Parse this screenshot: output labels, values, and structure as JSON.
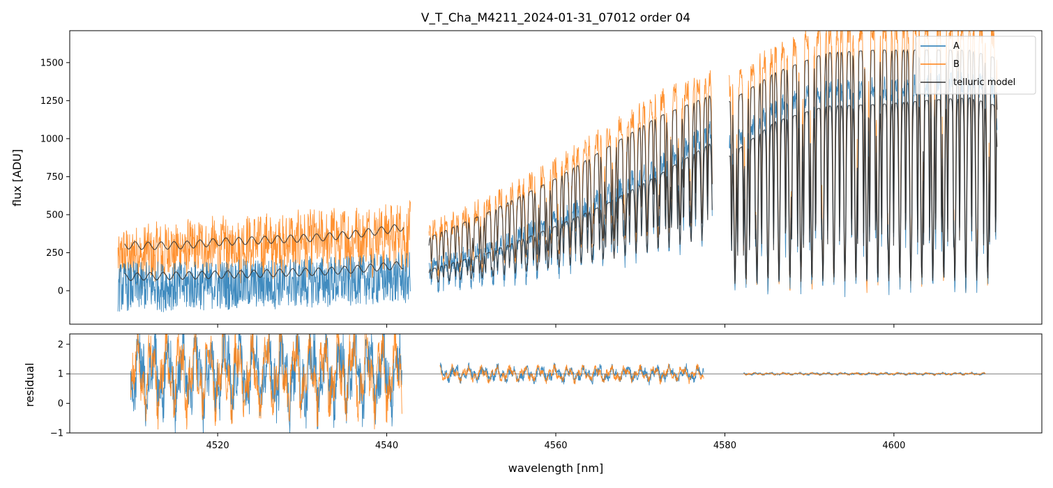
{
  "chart_data": [
    {
      "type": "line",
      "panel": "top",
      "title": "V_T_Cha_M4211_2024-01-31_07012  order 04",
      "xlabel": "",
      "ylabel": "flux [ADU]",
      "xlim": [
        4502.5,
        4617.5
      ],
      "ylim": [
        -220,
        1710
      ],
      "xticks": [
        4520,
        4540,
        4560,
        4580,
        4600
      ],
      "yticks": [
        0,
        250,
        500,
        750,
        1000,
        1250,
        1500
      ],
      "ytick_labels": [
        "0",
        "250",
        "500",
        "750",
        "1000",
        "1250",
        "1500"
      ],
      "segments": [
        [
          4508.2,
          4542.8
        ],
        [
          4545.0,
          4578.5
        ],
        [
          4580.5,
          4612.2
        ]
      ],
      "legend": {
        "placement": "top-right",
        "entries": [
          {
            "label": "A",
            "color": "#1f77b4"
          },
          {
            "label": "B",
            "color": "#ff7f0e"
          },
          {
            "label": "telluric model",
            "color": "#333333"
          }
        ]
      },
      "series": [
        {
          "name": "A",
          "color": "#1f77b4",
          "x": [
            4508.2,
            4515,
            4522,
            4529,
            4536,
            4542.8,
            4545.0,
            4552,
            4560,
            4566,
            4572,
            4578.5,
            4580.5,
            4586,
            4592,
            4598,
            4604,
            4609,
            4612.2
          ],
          "continuum": [
            30,
            35,
            45,
            60,
            75,
            95,
            150,
            270,
            460,
            620,
            820,
            1060,
            960,
            1210,
            1320,
            1330,
            1360,
            1380,
            1320
          ]
        },
        {
          "name": "B",
          "color": "#ff7f0e",
          "x": [
            4508.2,
            4515,
            4522,
            4529,
            4536,
            4542.8,
            4545.0,
            4552,
            4560,
            4566,
            4572,
            4578.5,
            4580.5,
            4586,
            4592,
            4598,
            4604,
            4609,
            4612.2
          ],
          "continuum": [
            250,
            300,
            330,
            360,
            390,
            420,
            380,
            560,
            800,
            1020,
            1240,
            1400,
            1350,
            1560,
            1700,
            1720,
            1720,
            1720,
            1660
          ]
        },
        {
          "name": "telluric model (A)",
          "color": "#333333",
          "x": [
            4509,
            4512,
            4516,
            4520,
            4524,
            4528,
            4532,
            4536,
            4540,
            4542
          ],
          "y": [
            90,
            95,
            100,
            105,
            110,
            120,
            125,
            140,
            160,
            170
          ]
        },
        {
          "name": "telluric model (B)",
          "color": "#333333",
          "x": [
            4509,
            4512,
            4516,
            4520,
            4524,
            4528,
            4532,
            4536,
            4540,
            4542
          ],
          "y": [
            300,
            295,
            300,
            320,
            330,
            340,
            350,
            370,
            400,
            420
          ]
        }
      ]
    },
    {
      "type": "line",
      "panel": "bottom",
      "xlabel": "wavelength [nm]",
      "ylabel": "residual",
      "xlim": [
        4502.5,
        4617.5
      ],
      "ylim": [
        -1.0,
        2.35
      ],
      "xticks": [
        4520,
        4540,
        4560,
        4580,
        4600
      ],
      "xtick_labels": [
        "4520",
        "4540",
        "4560",
        "4580",
        "4600"
      ],
      "yticks": [
        -1,
        0,
        1,
        2
      ],
      "ytick_labels": [
        "−1",
        "0",
        "1",
        "2"
      ],
      "reference_line": 1,
      "segments": [
        {
          "x": [
            4509.7,
            4541.8
          ],
          "scatter": 1.5
        },
        {
          "x": [
            4546.3,
            4577.5
          ],
          "scatter": 0.28
        },
        {
          "x": [
            4582.2,
            4610.8
          ],
          "scatter": 0.04
        }
      ],
      "series": [
        {
          "name": "A",
          "color": "#1f77b4"
        },
        {
          "name": "B",
          "color": "#ff7f0e"
        }
      ]
    }
  ]
}
